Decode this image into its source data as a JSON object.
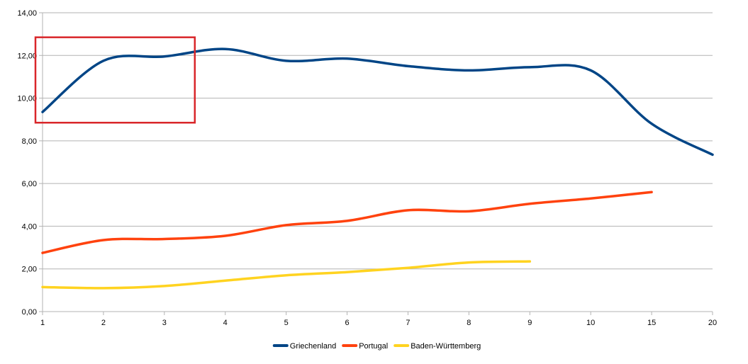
{
  "chart_data": {
    "type": "line",
    "categories": [
      "1",
      "2",
      "3",
      "4",
      "5",
      "6",
      "7",
      "8",
      "9",
      "10",
      "15",
      "20"
    ],
    "y_ticks": [
      "0,00",
      "2,00",
      "4,00",
      "6,00",
      "8,00",
      "10,00",
      "12,00",
      "14,00"
    ],
    "ylim": [
      0,
      14
    ],
    "grid": true,
    "legend_position": "bottom",
    "smooth": true,
    "series": [
      {
        "name": "Griechenland",
        "color": "#004586",
        "values": [
          9.35,
          11.75,
          11.95,
          12.3,
          11.75,
          11.85,
          11.5,
          11.3,
          11.45,
          11.3,
          8.8,
          7.35
        ]
      },
      {
        "name": "Portugal",
        "color": "#ff420e",
        "values": [
          2.75,
          3.35,
          3.4,
          3.55,
          4.05,
          4.25,
          4.75,
          4.7,
          5.05,
          5.3,
          5.6,
          null
        ]
      },
      {
        "name": "Baden-Württemberg",
        "color": "#ffd320",
        "values": [
          1.15,
          1.1,
          1.2,
          1.45,
          1.7,
          1.85,
          2.05,
          2.3,
          2.35,
          null,
          null,
          null
        ]
      }
    ],
    "annotations": [
      {
        "type": "highlight-box",
        "color": "#d9262a",
        "x_from": 1,
        "x_to": 3.5,
        "y_from": 8.85,
        "y_to": 12.85
      }
    ]
  }
}
